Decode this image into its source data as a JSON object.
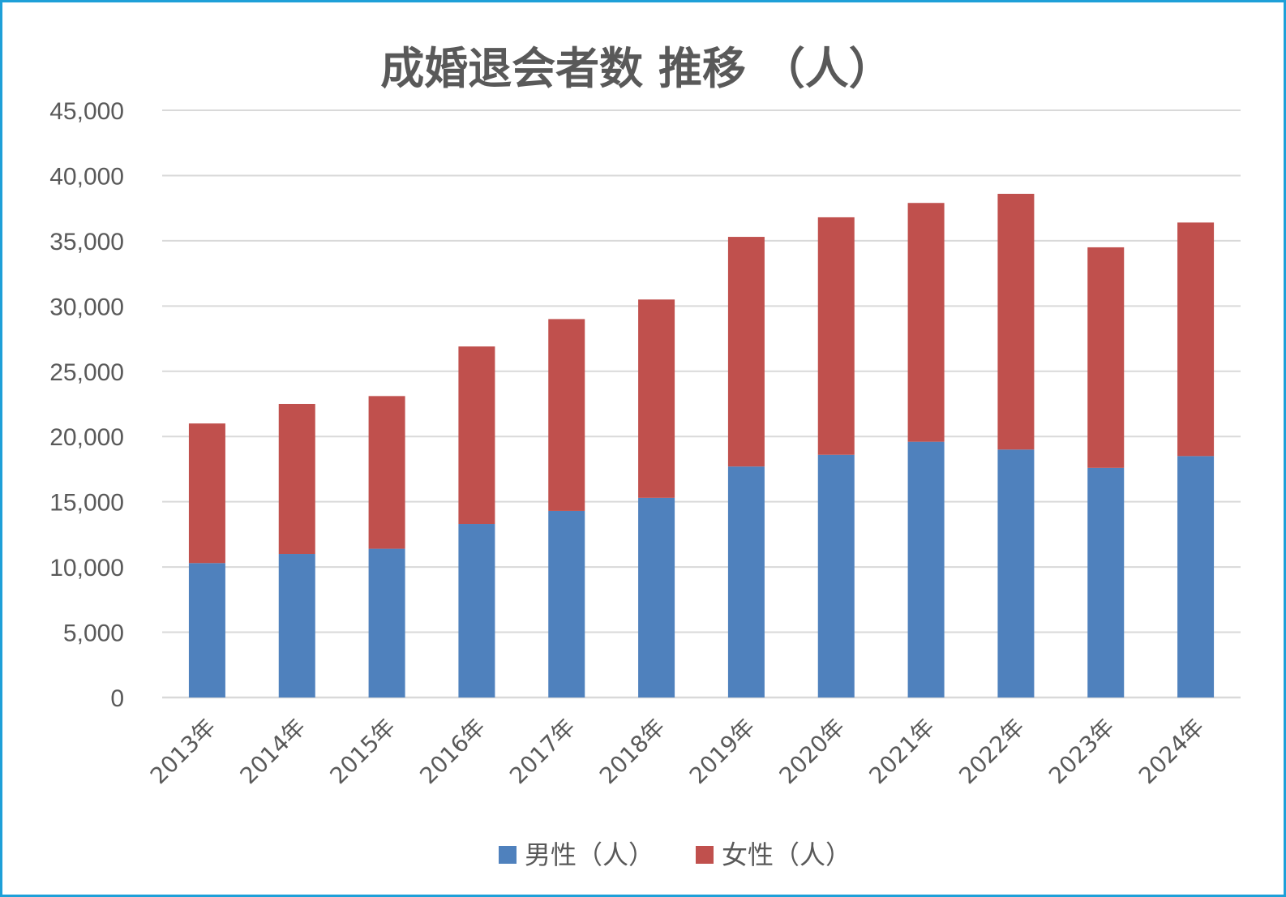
{
  "chart_data": {
    "type": "bar",
    "stacked": true,
    "title": "成婚退会者数 推移 （人）",
    "categories": [
      "2013年",
      "2014年",
      "2015年",
      "2016年",
      "2017年",
      "2018年",
      "2019年",
      "2020年",
      "2021年",
      "2022年",
      "2023年",
      "2024年"
    ],
    "series": [
      {
        "name": "男性（人）",
        "color": "#4f81bd",
        "values": [
          10300,
          11000,
          11400,
          13300,
          14300,
          15300,
          17700,
          18600,
          19600,
          19000,
          17600,
          18500
        ]
      },
      {
        "name": "女性（人）",
        "color": "#c0504d",
        "values": [
          10700,
          11500,
          11700,
          13600,
          14700,
          15200,
          17600,
          18200,
          18300,
          19600,
          16900,
          17900
        ]
      }
    ],
    "ylim": [
      0,
      45000
    ],
    "yticks": [
      0,
      5000,
      10000,
      15000,
      20000,
      25000,
      30000,
      35000,
      40000,
      45000
    ],
    "ytick_labels": [
      "0",
      "5,000",
      "10,000",
      "15,000",
      "20,000",
      "25,000",
      "30,000",
      "35,000",
      "40,000",
      "45,000"
    ],
    "xlabel": "",
    "ylabel": "",
    "grid": true,
    "legend_position": "bottom"
  },
  "colors": {
    "border": "#1ea0d8",
    "grid": "#d9d9d9",
    "text": "#595959"
  }
}
